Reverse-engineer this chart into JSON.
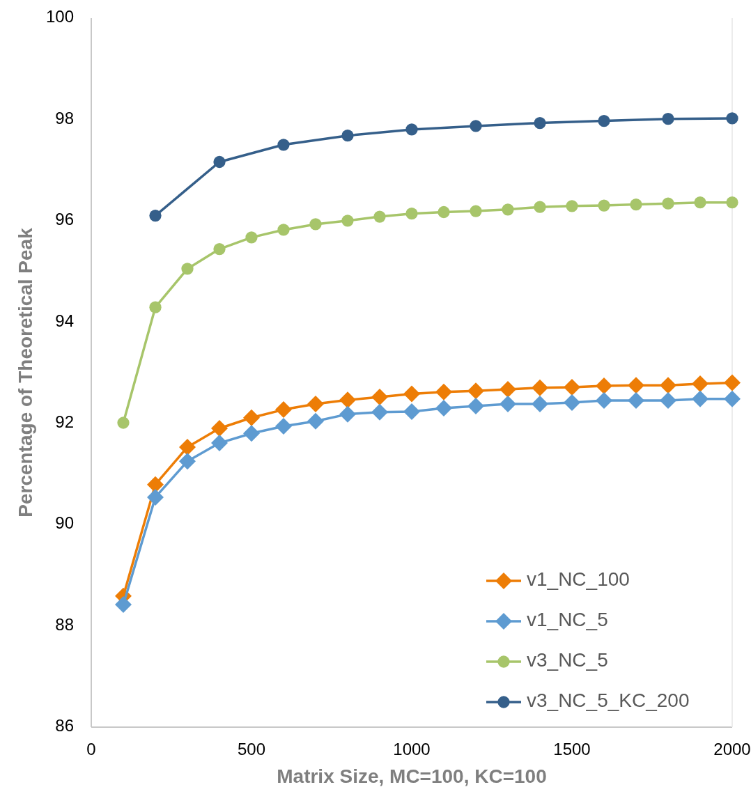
{
  "chart_data": {
    "type": "line",
    "xlabel": "Matrix Size, MC=100, KC=100",
    "ylabel": "Percentage of Theoretical Peak",
    "xlim": [
      0,
      2000
    ],
    "xticks": [
      0,
      500,
      1000,
      1500,
      2000
    ],
    "ylim": [
      86,
      100
    ],
    "yticks": [
      86,
      88,
      90,
      92,
      94,
      96,
      98,
      100
    ],
    "grid": false,
    "legend": "bottom right",
    "series": [
      {
        "name": "v1_NC_100",
        "color": "#ed7d06",
        "marker": "diamond",
        "x": [
          100,
          200,
          300,
          400,
          500,
          600,
          700,
          800,
          900,
          1000,
          1100,
          1200,
          1300,
          1400,
          1500,
          1600,
          1700,
          1800,
          1900,
          2000
        ],
        "values": [
          88.59,
          90.79,
          91.53,
          91.9,
          92.11,
          92.27,
          92.38,
          92.46,
          92.52,
          92.58,
          92.62,
          92.64,
          92.67,
          92.7,
          92.71,
          92.74,
          92.75,
          92.75,
          92.78,
          92.8
        ]
      },
      {
        "name": "v1_NC_5",
        "color": "#5e9bd1",
        "marker": "diamond",
        "x": [
          100,
          200,
          300,
          400,
          500,
          600,
          700,
          800,
          900,
          1000,
          1100,
          1200,
          1300,
          1400,
          1500,
          1600,
          1700,
          1800,
          1900,
          2000
        ],
        "values": [
          88.42,
          90.54,
          91.25,
          91.61,
          91.8,
          91.94,
          92.04,
          92.18,
          92.22,
          92.23,
          92.3,
          92.34,
          92.38,
          92.38,
          92.41,
          92.45,
          92.45,
          92.45,
          92.48,
          92.48
        ]
      },
      {
        "name": "v3_NC_5",
        "color": "#a7c56a",
        "marker": "circle",
        "x": [
          100,
          200,
          300,
          400,
          500,
          600,
          700,
          800,
          900,
          1000,
          1100,
          1200,
          1300,
          1400,
          1500,
          1600,
          1700,
          1800,
          1900,
          2000
        ],
        "values": [
          92.01,
          94.29,
          95.05,
          95.44,
          95.67,
          95.82,
          95.93,
          96.0,
          96.08,
          96.14,
          96.17,
          96.19,
          96.22,
          96.27,
          96.29,
          96.3,
          96.32,
          96.34,
          96.36,
          96.36
        ]
      },
      {
        "name": "v3_NC_5_KC_200",
        "color": "#355f8a",
        "marker": "circle",
        "x": [
          200,
          400,
          600,
          800,
          1000,
          1200,
          1400,
          1600,
          1800,
          2000
        ],
        "values": [
          96.1,
          97.16,
          97.5,
          97.68,
          97.8,
          97.87,
          97.93,
          97.97,
          98.01,
          98.02
        ]
      }
    ]
  }
}
